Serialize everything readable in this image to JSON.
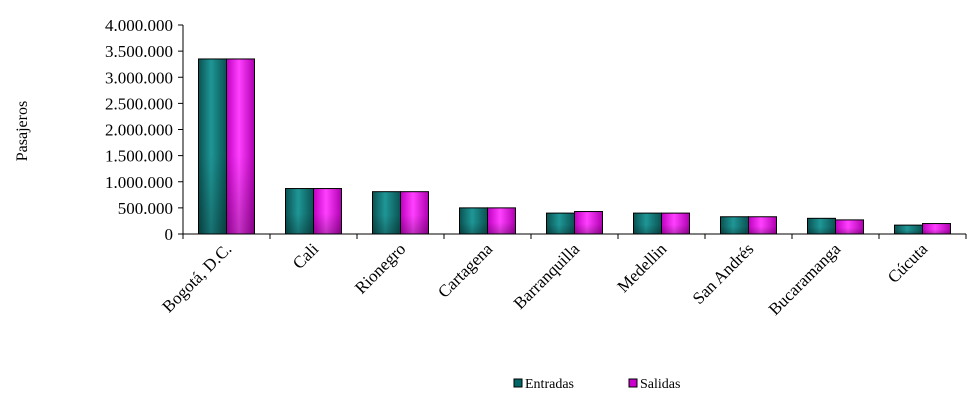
{
  "chart_data": {
    "type": "bar",
    "title": "",
    "xlabel": "",
    "ylabel": "Pasajeros",
    "ylim": [
      0,
      4000000
    ],
    "yticks": [
      0,
      500000,
      1000000,
      1500000,
      2000000,
      2500000,
      3000000,
      3500000,
      4000000
    ],
    "ytick_labels": [
      "0",
      "500.000",
      "1.000.000",
      "1.500.000",
      "2.000.000",
      "2.500.000",
      "3.000.000",
      "3.500.000",
      "4.000.000"
    ],
    "categories": [
      "Bogotá, D.C.",
      "Cali",
      "Rionegro",
      "Cartagena",
      "Barranquilla",
      "Medellin",
      "San Andrés",
      "Bucaramanga",
      "Cúcuta"
    ],
    "series": [
      {
        "name": "Entradas",
        "color": "#006666",
        "values": [
          3350000,
          870000,
          810000,
          500000,
          400000,
          400000,
          330000,
          300000,
          170000
        ]
      },
      {
        "name": "Salidas",
        "color": "#cc00cc",
        "values": [
          3350000,
          870000,
          810000,
          500000,
          430000,
          400000,
          330000,
          270000,
          200000
        ]
      }
    ],
    "grid": false,
    "legend_position": "bottom"
  }
}
